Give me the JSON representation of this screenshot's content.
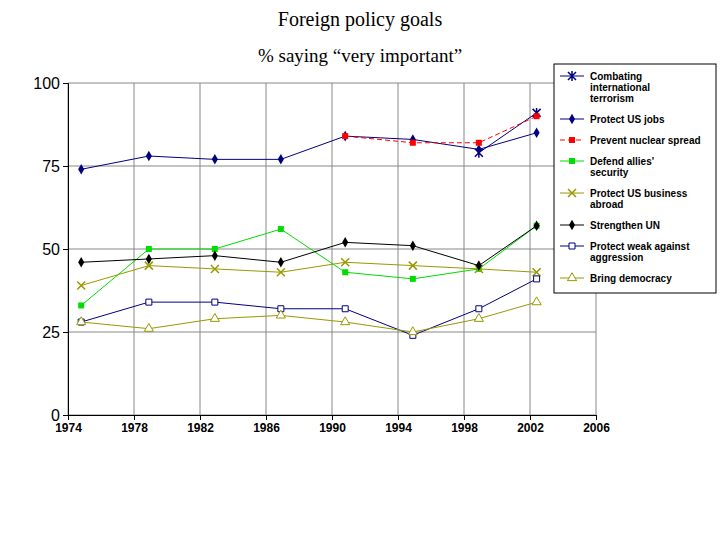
{
  "chart_data": {
    "type": "line",
    "title": "Foreign policy goals",
    "subtitle": "% saying “very important”",
    "x": [
      1974.8,
      1978.9,
      1982.9,
      1986.9,
      1990.8,
      1994.9,
      1998.9,
      2002.4
    ],
    "xlim": [
      1974,
      2006
    ],
    "xticks": [
      1974,
      1978,
      1982,
      1986,
      1990,
      1994,
      1998,
      2002,
      2006
    ],
    "ylim": [
      0,
      100
    ],
    "yticks": [
      0,
      25,
      50,
      75,
      100
    ],
    "grid": true,
    "legend": "upper right",
    "series": [
      {
        "name": "Combating international terrorism",
        "color": "#000080",
        "marker": "asterisk",
        "line_style": "solid",
        "values": [
          null,
          null,
          null,
          null,
          null,
          null,
          79,
          91
        ]
      },
      {
        "name": "Protect US jobs",
        "color": "#000080",
        "marker": "diamond",
        "line_style": "solid",
        "values": [
          74,
          78,
          77,
          77,
          84,
          83,
          80,
          85
        ]
      },
      {
        "name": "Prevent nuclear spread",
        "color": "#ff0000",
        "marker": "square",
        "line_style": "dashed",
        "values": [
          null,
          null,
          null,
          null,
          84,
          82,
          82,
          90
        ]
      },
      {
        "name": "Defend allies' security",
        "color": "#00dd00",
        "marker": "square",
        "line_style": "solid",
        "values": [
          33,
          50,
          50,
          56,
          43,
          41,
          44,
          57
        ]
      },
      {
        "name": "Protect US business abroad",
        "color": "#999900",
        "marker": "x",
        "line_style": "solid",
        "values": [
          39,
          45,
          44,
          43,
          46,
          45,
          44,
          43
        ]
      },
      {
        "name": "Strengthen UN",
        "color": "#000000",
        "marker": "diamond",
        "line_style": "solid",
        "values": [
          46,
          47,
          48,
          46,
          52,
          51,
          45,
          57
        ]
      },
      {
        "name": "Protect weak against aggression",
        "color": "#000080",
        "marker": "square-open",
        "line_style": "solid",
        "values": [
          28,
          34,
          34,
          32,
          32,
          24,
          32,
          41
        ]
      },
      {
        "name": "Bring democracy",
        "color": "#999900",
        "marker": "triangle-open",
        "line_style": "solid",
        "values": [
          28,
          26,
          29,
          30,
          28,
          25,
          29,
          34
        ]
      }
    ]
  }
}
